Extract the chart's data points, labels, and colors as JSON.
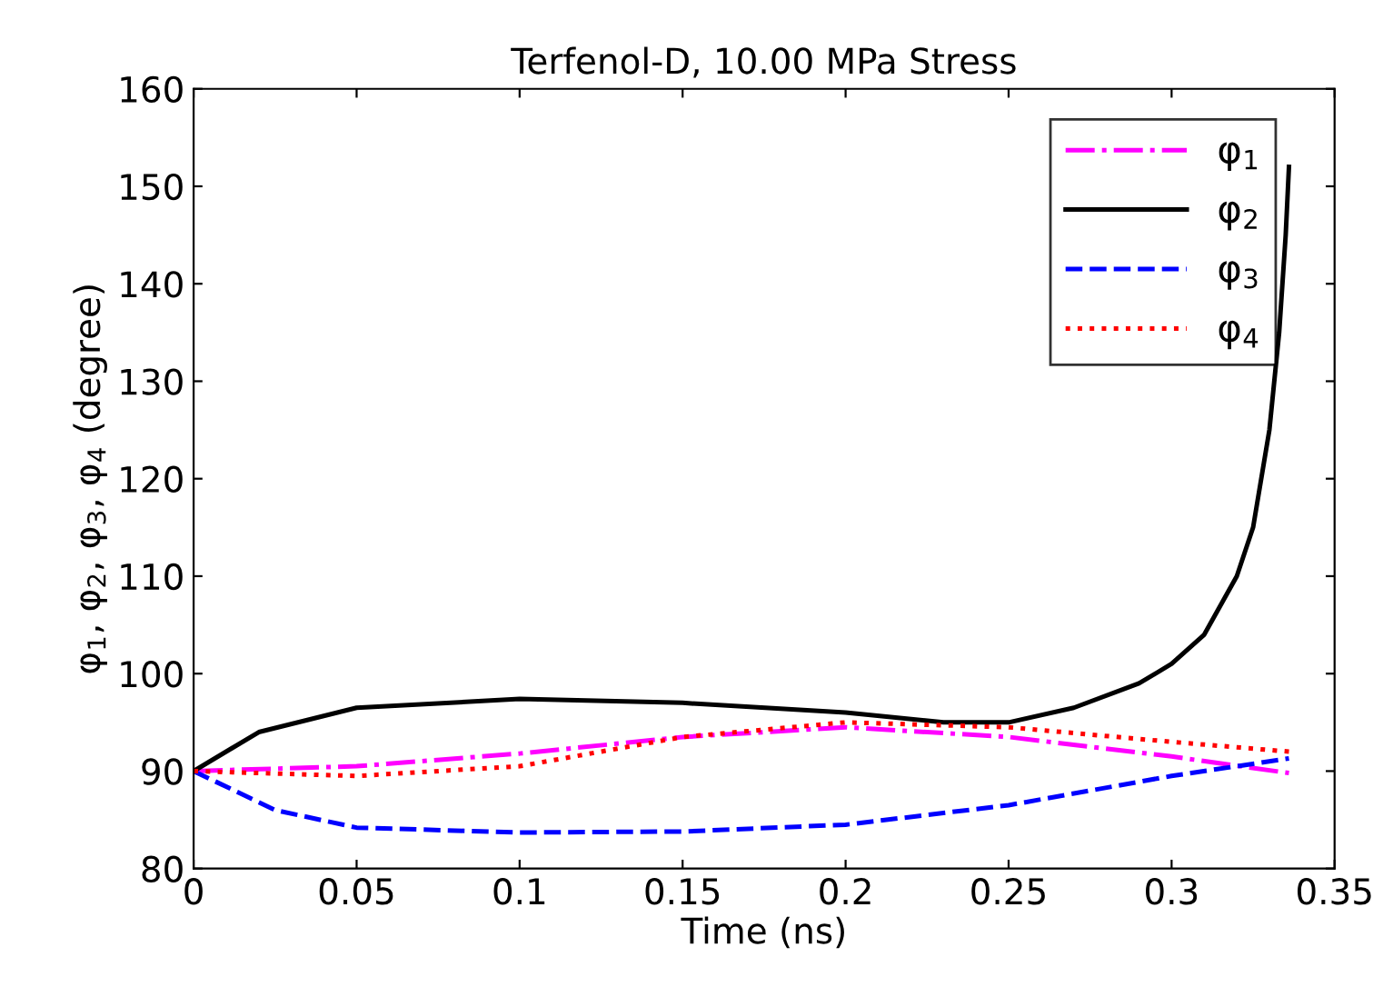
{
  "chart_data": {
    "type": "line",
    "title": "Terfenol-D, 10.00 MPa Stress",
    "xlabel": "Time (ns)",
    "ylabel": "φ$_{1}$, φ$_{2}$, φ$_{3}$, φ$_{4}$ (degree)",
    "xlim": [
      0,
      0.35
    ],
    "xticks": [
      0,
      0.05,
      0.1,
      0.15,
      0.2,
      0.25,
      0.3,
      0.35
    ],
    "ylim": [
      80,
      160
    ],
    "yticks": [
      80,
      90,
      100,
      110,
      120,
      130,
      140,
      150,
      160
    ],
    "grid": false,
    "legend": "top right",
    "marker": "none",
    "series": [
      {
        "name": "φ$_{1}$",
        "color": "#ff00ff",
        "line_style": "dashdot",
        "x": [
          0,
          0.05,
          0.1,
          0.15,
          0.2,
          0.25,
          0.3,
          0.336
        ],
        "values": [
          90,
          90.5,
          91.8,
          93.5,
          94.5,
          93.5,
          91.5,
          89.8
        ]
      },
      {
        "name": "φ$_{2}$",
        "color": "#000000",
        "line_style": "solid",
        "x": [
          0,
          0.02,
          0.05,
          0.1,
          0.15,
          0.2,
          0.23,
          0.25,
          0.27,
          0.29,
          0.3,
          0.31,
          0.32,
          0.325,
          0.33,
          0.333,
          0.335,
          0.336
        ],
        "values": [
          90,
          94,
          96.5,
          97.4,
          97,
          96,
          95,
          95,
          96.5,
          99,
          101,
          104,
          110,
          115,
          125,
          135,
          145,
          152
        ]
      },
      {
        "name": "φ$_{3}$",
        "color": "#0000ff",
        "line_style": "dashed",
        "x": [
          0,
          0.025,
          0.05,
          0.1,
          0.15,
          0.2,
          0.25,
          0.3,
          0.336
        ],
        "values": [
          90,
          86,
          84.2,
          83.7,
          83.8,
          84.5,
          86.5,
          89.5,
          91.3
        ]
      },
      {
        "name": "φ$_{4}$",
        "color": "#ff0000",
        "line_style": "dotted",
        "x": [
          0,
          0.05,
          0.1,
          0.15,
          0.2,
          0.25,
          0.3,
          0.336
        ],
        "values": [
          90,
          89.5,
          90.5,
          93.5,
          95,
          94.5,
          93,
          92
        ]
      }
    ]
  }
}
